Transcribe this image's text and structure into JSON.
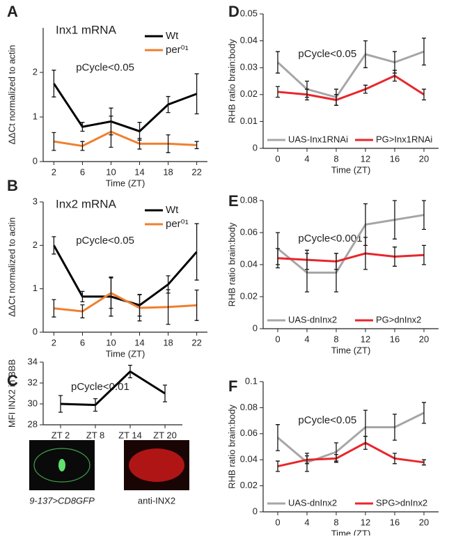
{
  "chart_data": [
    {
      "type": "line",
      "panel": "A",
      "title": "Inx1 mRNA",
      "annotation": "pCycle<0.05",
      "xlabel": "Time (ZT)",
      "ylabel": "ΔΔCt normalized to actin",
      "x": [
        2,
        6,
        10,
        14,
        18,
        22
      ],
      "xlim": [
        0.5,
        23.5
      ],
      "xticks": [
        2,
        6,
        10,
        14,
        18,
        22
      ],
      "ylim": [
        0,
        3
      ],
      "yticks": [
        0,
        1,
        2
      ],
      "legend": "upper right",
      "series": [
        {
          "name": "Wt",
          "color": "#000000",
          "values": [
            1.75,
            0.78,
            0.9,
            0.68,
            1.28,
            1.52
          ],
          "errors": [
            0.3,
            0.1,
            0.3,
            0.2,
            0.18,
            0.45
          ]
        },
        {
          "name": "per⁰¹",
          "color": "#f07f2e",
          "values": [
            0.45,
            0.35,
            0.67,
            0.4,
            0.4,
            0.37
          ],
          "errors": [
            0.2,
            0.1,
            0.35,
            0.12,
            0.2,
            0.08
          ]
        }
      ]
    },
    {
      "type": "line",
      "panel": "B",
      "title": "Inx2 mRNA",
      "annotation": "pCycle<0.05",
      "xlabel": "Time (ZT)",
      "ylabel": "ΔΔCt normalized to actin",
      "x": [
        2,
        6,
        10,
        14,
        18,
        22
      ],
      "xlim": [
        0.5,
        23.5
      ],
      "xticks": [
        2,
        6,
        10,
        14,
        18,
        22
      ],
      "ylim": [
        0,
        3
      ],
      "yticks": [
        0,
        1,
        2,
        3
      ],
      "legend": "upper right",
      "series": [
        {
          "name": "Wt",
          "color": "#000000",
          "values": [
            2.0,
            0.82,
            0.82,
            0.62,
            1.1,
            1.85
          ],
          "errors": [
            0.2,
            0.12,
            0.45,
            0.25,
            0.2,
            0.65
          ]
        },
        {
          "name": "per⁰¹",
          "color": "#f07f2e",
          "values": [
            0.55,
            0.48,
            0.9,
            0.56,
            0.58,
            0.62
          ],
          "errors": [
            0.2,
            0.15,
            0.35,
            0.3,
            0.4,
            0.35
          ]
        }
      ]
    },
    {
      "type": "line",
      "panel": "C",
      "annotation": "pCycle<0.01",
      "ylabel": "MFI INX2 in BBB",
      "categories": [
        "ZT 2",
        "ZT 8",
        "ZT 14",
        "ZT 20"
      ],
      "ylim": [
        28,
        34
      ],
      "yticks": [
        28,
        30,
        32,
        34
      ],
      "series": [
        {
          "color": "#000000",
          "values": [
            30,
            29.9,
            33.1,
            31
          ],
          "errors": [
            0.8,
            0.6,
            0.6,
            0.8
          ]
        }
      ],
      "images": [
        "9-137>CD8GFP",
        "anti-INX2"
      ]
    },
    {
      "type": "line",
      "panel": "D",
      "annotation": "pCycle<0.05",
      "xlabel": "Time (ZT)",
      "ylabel": "RHB ratio brain:body",
      "x": [
        0,
        4,
        8,
        12,
        16,
        20
      ],
      "xlim": [
        -2,
        22
      ],
      "xticks": [
        0,
        4,
        8,
        12,
        16,
        20
      ],
      "ylim": [
        0,
        0.05
      ],
      "yticks": [
        0,
        0.01,
        0.02,
        0.03,
        0.04,
        0.05
      ],
      "legend": "lower center",
      "series": [
        {
          "name": "UAS-Inx1RNAi",
          "color": "#a6a6a6",
          "values": [
            0.032,
            0.022,
            0.019,
            0.035,
            0.032,
            0.036
          ],
          "errors": [
            0.004,
            0.003,
            0.003,
            0.005,
            0.004,
            0.005
          ]
        },
        {
          "name": "PG>Inx1RNAi",
          "color": "#e8262b",
          "values": [
            0.021,
            0.02,
            0.018,
            0.022,
            0.027,
            0.02
          ],
          "errors": [
            0.002,
            0.002,
            0.002,
            0.0015,
            0.002,
            0.002
          ]
        }
      ]
    },
    {
      "type": "line",
      "panel": "E",
      "annotation": "pCycle<0.001",
      "xlabel": "Time (ZT)",
      "ylabel": "RHB ratio brain:body",
      "x": [
        0,
        4,
        8,
        12,
        16,
        20
      ],
      "xlim": [
        -2,
        22
      ],
      "xticks": [
        0,
        4,
        8,
        12,
        16,
        20
      ],
      "ylim": [
        0,
        0.08
      ],
      "yticks": [
        0,
        0.02,
        0.04,
        0.06,
        0.08
      ],
      "legend": "lower center",
      "series": [
        {
          "name": "UAS-dnInx2",
          "color": "#a6a6a6",
          "values": [
            0.05,
            0.035,
            0.035,
            0.065,
            0.068,
            0.071
          ],
          "errors": [
            0.01,
            0.012,
            0.012,
            0.013,
            0.012,
            0.009
          ]
        },
        {
          "name": "PG>dnInx2",
          "color": "#e8262b",
          "values": [
            0.044,
            0.043,
            0.042,
            0.047,
            0.045,
            0.046
          ],
          "errors": [
            0.006,
            0.006,
            0.005,
            0.01,
            0.006,
            0.006
          ]
        }
      ]
    },
    {
      "type": "line",
      "panel": "F",
      "annotation": "pCycle<0.05",
      "xlabel": "Time (ZT)",
      "ylabel": "RHB ratio brain:body",
      "x": [
        0,
        4,
        8,
        12,
        16,
        20
      ],
      "xlim": [
        -2,
        22
      ],
      "xticks": [
        0,
        4,
        8,
        12,
        16,
        20
      ],
      "ylim": [
        0,
        0.1
      ],
      "yticks": [
        0,
        0.02,
        0.04,
        0.06,
        0.08,
        0.1
      ],
      "legend": "lower center",
      "series": [
        {
          "name": "UAS-dnInx2",
          "color": "#a6a6a6",
          "values": [
            0.057,
            0.038,
            0.046,
            0.065,
            0.065,
            0.076
          ],
          "errors": [
            0.01,
            0.007,
            0.007,
            0.013,
            0.01,
            0.008
          ]
        },
        {
          "name": "SPG>dnInx2",
          "color": "#e8262b",
          "values": [
            0.035,
            0.04,
            0.041,
            0.053,
            0.041,
            0.038
          ],
          "errors": [
            0.004,
            0.003,
            0.003,
            0.005,
            0.004,
            0.002
          ]
        }
      ]
    }
  ]
}
